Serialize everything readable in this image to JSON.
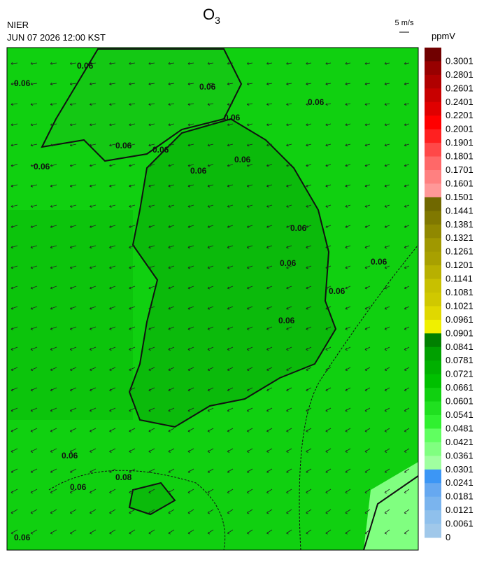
{
  "header": {
    "title": "O",
    "title_subscript": "3",
    "agency": "NIER",
    "datetime": "JUN 07 2026 12:00 KST",
    "wind_scale": "5 m/s",
    "unit": "ppmV"
  },
  "legend": {
    "labels": [
      "0.3001",
      "0.2801",
      "0.2601",
      "0.2401",
      "0.2201",
      "0.2001",
      "0.1901",
      "0.1801",
      "0.1701",
      "0.1601",
      "0.1501",
      "0.1441",
      "0.1381",
      "0.1321",
      "0.1261",
      "0.1201",
      "0.1141",
      "0.1081",
      "0.1021",
      "0.0961",
      "0.0901",
      "0.0841",
      "0.0781",
      "0.0721",
      "0.0661",
      "0.0601",
      "0.0541",
      "0.0481",
      "0.0421",
      "0.0361",
      "0.0301",
      "0.0241",
      "0.0181",
      "0.0121",
      "0.0061",
      "0"
    ],
    "colors": [
      "#700000",
      "#980000",
      "#b00000",
      "#c80000",
      "#e00000",
      "#ff0000",
      "#ff2020",
      "#ff4848",
      "#ff6868",
      "#ff8080",
      "#ff9898",
      "#706800",
      "#807800",
      "#908800",
      "#a09800",
      "#a8a000",
      "#b8b000",
      "#c8c000",
      "#d0c800",
      "#e0d800",
      "#f0f000",
      "#008000",
      "#00a000",
      "#00b000",
      "#00c000",
      "#10d010",
      "#20e020",
      "#30f030",
      "#60ff60",
      "#80ff80",
      "#a0ffa0",
      "#3c96f5",
      "#66a8f0",
      "#7ab4ee",
      "#8fc0ec",
      "#a0c8ea"
    ]
  },
  "map": {
    "contour_labels": [
      "0.06",
      "0.06",
      "0.06",
      "0.06",
      "0.06",
      "0.06",
      "0.06",
      "0.06",
      "0.06",
      "0.06",
      "0.06",
      "0.06",
      "0.06",
      "0.06",
      "0.06",
      "0.06",
      "0.08",
      "0.06",
      "0.06"
    ]
  }
}
